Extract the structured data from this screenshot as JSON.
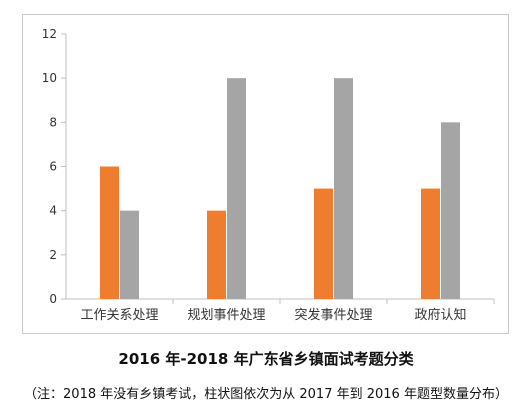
{
  "chart_data": {
    "type": "bar",
    "categories": [
      "工作关系处理",
      "规划事件处理",
      "突发事件处理",
      "政府认知"
    ],
    "series": [
      {
        "values": [
          6,
          4,
          5,
          5
        ],
        "color": "#ef7d30"
      },
      {
        "values": [
          4,
          10,
          10,
          8
        ],
        "color": "#a5a5a5"
      }
    ],
    "ylim": [
      0,
      12
    ],
    "yticks": [
      0,
      2,
      4,
      6,
      8,
      10,
      12
    ],
    "grid": false,
    "title": "2016 年-2018 年广东省乡镇面试考题分类",
    "note": "（注：2018 年没有乡镇考试，柱状图依次为从 2017 年到 2016 年题型数量分布）"
  }
}
